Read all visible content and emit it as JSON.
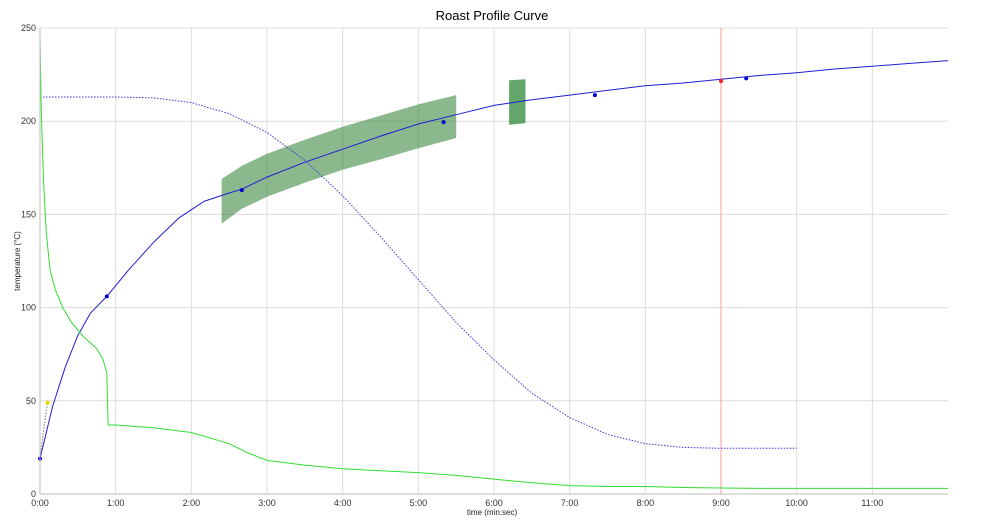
{
  "chart_data": {
    "type": "line",
    "title": "Roast Profile Curve",
    "xlabel": "time (min:sec)",
    "ylabel": "temperature (°C)",
    "xlim": [
      0,
      720
    ],
    "ylim": [
      0,
      250
    ],
    "x_ticks": [
      {
        "value": 0,
        "label": "0:00"
      },
      {
        "value": 60,
        "label": "1:00"
      },
      {
        "value": 120,
        "label": "2:00"
      },
      {
        "value": 180,
        "label": "3:00"
      },
      {
        "value": 240,
        "label": "4:00"
      },
      {
        "value": 300,
        "label": "5:00"
      },
      {
        "value": 360,
        "label": "6:00"
      },
      {
        "value": 420,
        "label": "7:00"
      },
      {
        "value": 480,
        "label": "8:00"
      },
      {
        "value": 540,
        "label": "9:00"
      },
      {
        "value": 600,
        "label": "10:00"
      },
      {
        "value": 660,
        "label": "11:00"
      }
    ],
    "y_ticks": [
      {
        "value": 0,
        "label": "0"
      },
      {
        "value": 50,
        "label": "50"
      },
      {
        "value": 100,
        "label": "100"
      },
      {
        "value": 150,
        "label": "150"
      },
      {
        "value": 200,
        "label": "200"
      },
      {
        "value": 250,
        "label": "250"
      }
    ],
    "grid": true,
    "legend": "none",
    "vertical_marker": {
      "x": 540,
      "color": "#ff9999"
    },
    "series": [
      {
        "style": "solid",
        "color": "#1f1fd6",
        "x": [
          0,
          10,
          20,
          30,
          40,
          53,
          70,
          90,
          110,
          130,
          150,
          160,
          180,
          210,
          240,
          270,
          300,
          330,
          360,
          390,
          420,
          450,
          480,
          510,
          540,
          570,
          600,
          630,
          660,
          690,
          720
        ],
        "y": [
          19,
          47,
          68,
          85,
          97,
          106,
          120,
          135,
          148,
          157,
          161.5,
          163.5,
          170,
          178,
          185,
          192,
          198.5,
          203.5,
          208.5,
          211.5,
          214,
          216.5,
          219,
          220.5,
          222.5,
          224.5,
          226,
          228,
          229.5,
          231,
          232.5
        ]
      },
      {
        "style": "dotted",
        "color": "#3a3ad8",
        "x": [
          0,
          30,
          60,
          90,
          120,
          150,
          180,
          210,
          240,
          270,
          300,
          330,
          360,
          390,
          420,
          450,
          480,
          510,
          540,
          570,
          600
        ],
        "y": [
          213,
          213,
          213,
          212.5,
          210,
          204,
          194,
          179,
          160,
          138,
          115,
          92,
          72,
          54,
          41,
          32,
          27,
          25,
          24.5,
          24.5,
          24.5
        ]
      },
      {
        "style": "solid",
        "color": "#33dd33",
        "x": [
          0,
          1,
          2,
          3,
          5,
          8,
          12,
          18,
          25,
          35,
          45,
          50,
          53,
          54,
          60,
          90,
          120,
          150,
          165,
          180,
          210,
          240,
          270,
          300,
          330,
          360,
          390,
          420,
          450,
          480,
          510,
          540,
          570,
          600,
          630,
          660,
          690,
          720
        ],
        "y": [
          245,
          205,
          185,
          165,
          140,
          120,
          110,
          100,
          92,
          84,
          78,
          72,
          65,
          37,
          37,
          35.5,
          33,
          27,
          22,
          18,
          15.5,
          13.5,
          12.5,
          11.5,
          10,
          8,
          6,
          4.5,
          4,
          4,
          3.5,
          3.2,
          3,
          3,
          3,
          3,
          3,
          3
        ]
      },
      {
        "style": "dotted",
        "color": "#777777",
        "x": [
          0,
          3,
          6
        ],
        "y": [
          19,
          35,
          49
        ]
      }
    ],
    "points": [
      {
        "x": 0,
        "y": 19,
        "color": "#0000cc"
      },
      {
        "x": 6,
        "y": 49,
        "color": "#e8d700"
      },
      {
        "x": 53,
        "y": 106,
        "color": "#0000cc"
      },
      {
        "x": 160,
        "y": 163,
        "color": "#0000cc"
      },
      {
        "x": 320,
        "y": 199.5,
        "color": "#0000cc"
      },
      {
        "x": 440,
        "y": 214,
        "color": "#0000cc"
      },
      {
        "x": 540,
        "y": 221.5,
        "color": "#ff2222"
      },
      {
        "x": 560,
        "y": 223,
        "color": "#0000cc"
      }
    ],
    "bands": [
      {
        "color": "#2e7d32",
        "opacity": 0.55,
        "x": [
          144,
          160,
          180,
          210,
          240,
          270,
          300,
          330
        ],
        "upper": [
          169,
          176,
          182.5,
          190,
          197,
          203,
          209,
          214
        ],
        "lower": [
          145,
          153,
          159.5,
          167,
          174,
          179.5,
          185.5,
          191
        ]
      },
      {
        "color": "#2e8b3a",
        "opacity": 0.75,
        "x": [
          372,
          385
        ],
        "upper": [
          222,
          222.5
        ],
        "lower": [
          198,
          199
        ]
      }
    ]
  }
}
